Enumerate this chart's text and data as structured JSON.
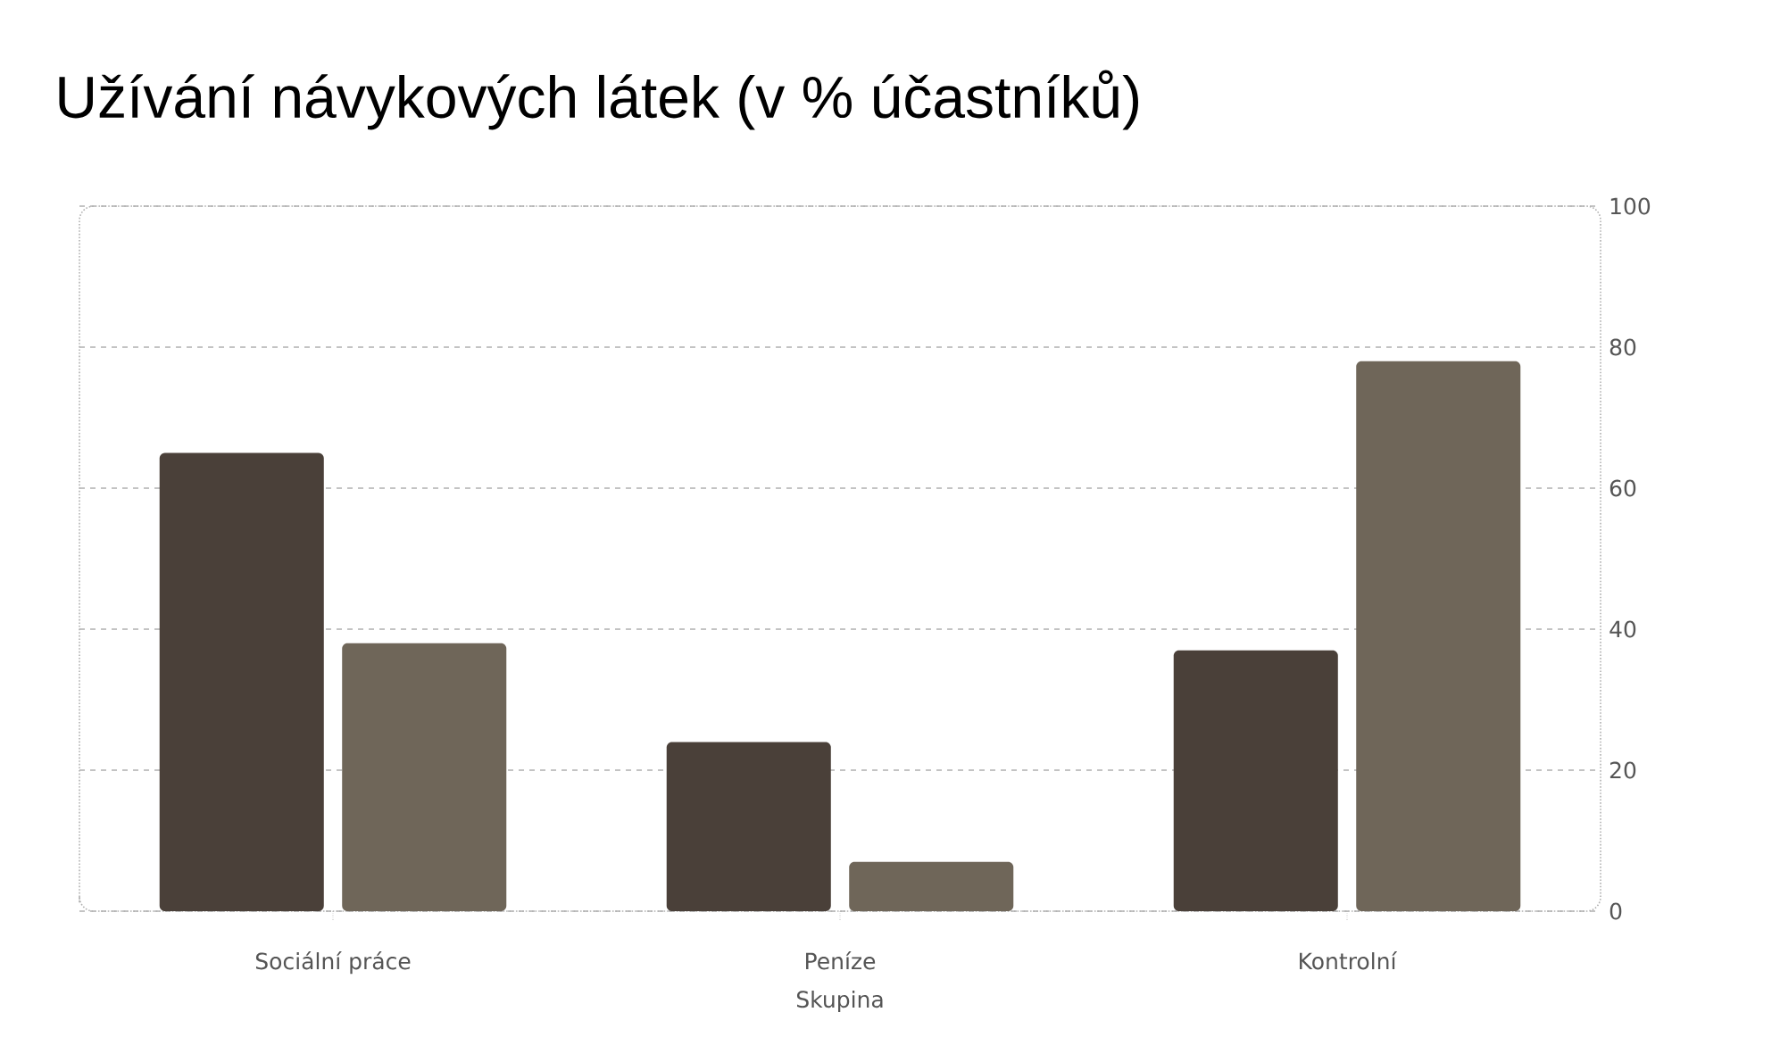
{
  "chart_data": {
    "type": "bar",
    "title": "Užívání návykových látek (v % účastníků)",
    "xlabel": "Skupina",
    "categories": [
      "Sociální práce",
      "Peníze",
      "Kontrolní"
    ],
    "series": [
      {
        "color": "#4a4039",
        "values": [
          65,
          24,
          37
        ]
      },
      {
        "color": "#6f6659",
        "values": [
          38,
          7,
          78
        ]
      }
    ],
    "ylim": [
      0,
      100
    ],
    "yticks": [
      0,
      20,
      40,
      60,
      80,
      100
    ],
    "grid": "y"
  }
}
